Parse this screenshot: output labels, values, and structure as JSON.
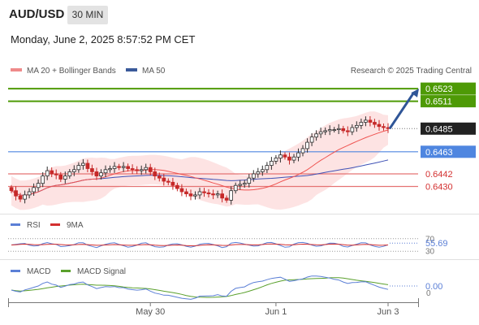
{
  "header": {
    "symbol": "AUD/USD",
    "timeframe": "30 MIN",
    "datetime": "Monday, June 2, 2025 8:57:52 PM CET"
  },
  "legend": {
    "ma": "MA 20 + Bollinger Bands",
    "ma50": "MA 50",
    "credit": "Research © 2025 Trading Central"
  },
  "colors": {
    "up": "#2e2e2e",
    "down": "#c62828",
    "ma20": "#ef5350",
    "ma50": "#3f51b5",
    "band": "#fcdcdc",
    "support": "#4f86e0",
    "resistance": "#4e9a06",
    "level_red": "#e57373",
    "rsi": "#5b7fd6",
    "rsi_ma": "#d32f2f",
    "macd": "#5b7fd6",
    "macd_signal": "#5aa02c"
  },
  "chart_data": {
    "type": "candlestick",
    "ylim": [
      0.6408,
      0.653
    ],
    "levels": [
      {
        "label": "0.6523",
        "value": 0.6523,
        "kind": "resistance"
      },
      {
        "label": "0.6511",
        "value": 0.6511,
        "kind": "resistance"
      },
      {
        "label": "0.6485",
        "value": 0.6485,
        "kind": "last"
      },
      {
        "label": "0.6463",
        "value": 0.6463,
        "kind": "support"
      },
      {
        "label": "0.6442",
        "value": 0.6442,
        "kind": "pivot"
      },
      {
        "label": "0.6430",
        "value": 0.643,
        "kind": "pivot"
      }
    ],
    "x_ticks": [
      "May 30",
      "Jun 1",
      "Jun 3"
    ],
    "closes": [
      0.6426,
      0.6421,
      0.6418,
      0.6422,
      0.6425,
      0.6429,
      0.6433,
      0.644,
      0.6445,
      0.6442,
      0.6441,
      0.6437,
      0.644,
      0.6444,
      0.6446,
      0.645,
      0.6452,
      0.6447,
      0.6444,
      0.644,
      0.6443,
      0.6446,
      0.6447,
      0.6449,
      0.6448,
      0.6449,
      0.6447,
      0.6446,
      0.6445,
      0.6446,
      0.6448,
      0.6444,
      0.644,
      0.6438,
      0.6435,
      0.6434,
      0.6431,
      0.6428,
      0.6425,
      0.6423,
      0.6421,
      0.6422,
      0.6425,
      0.6424,
      0.6423,
      0.6422,
      0.6423,
      0.6419,
      0.6417,
      0.6426,
      0.6431,
      0.6432,
      0.6433,
      0.6438,
      0.6442,
      0.6444,
      0.6446,
      0.645,
      0.6454,
      0.6457,
      0.646,
      0.6458,
      0.6455,
      0.6458,
      0.6462,
      0.6466,
      0.6472,
      0.6477,
      0.648,
      0.6482,
      0.6483,
      0.6484,
      0.6484,
      0.6485,
      0.6483,
      0.6482,
      0.6486,
      0.6488,
      0.6491,
      0.6493,
      0.6491,
      0.6489,
      0.6487,
      0.6486,
      0.6485
    ],
    "rsi": {
      "label": "RSI",
      "ma_label": "9MA",
      "value": 55.69,
      "value_label": "55.69",
      "levels": [
        70,
        30
      ],
      "level_labels": [
        "70",
        "30"
      ]
    },
    "macd": {
      "label": "MACD",
      "signal_label": "MACD Signal",
      "value": 0.0,
      "value_label": "0.00",
      "zero_label": "0"
    }
  }
}
